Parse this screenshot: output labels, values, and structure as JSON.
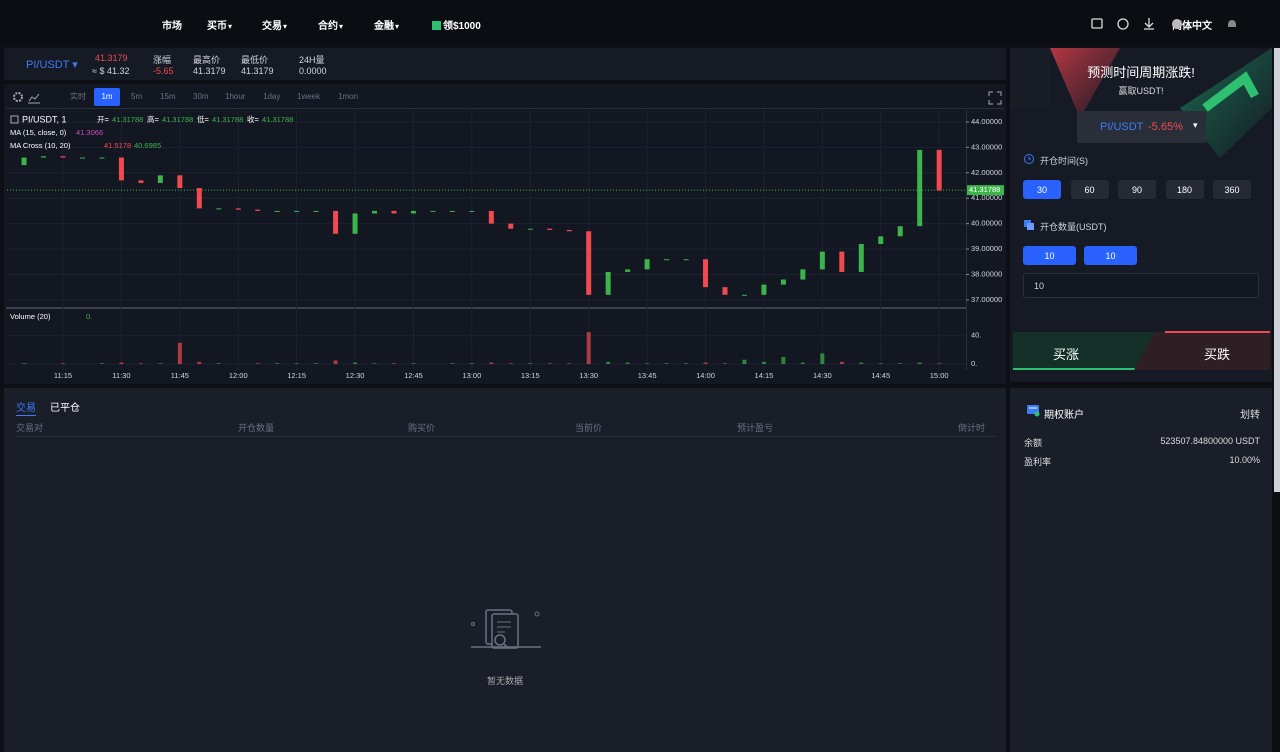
{
  "nav": {
    "items": [
      "市场",
      "买币",
      "交易",
      "合约",
      "金融"
    ],
    "dropdown": [
      false,
      true,
      true,
      true,
      true
    ],
    "promo": "领$1000",
    "language": "简体中文"
  },
  "ticker": {
    "pair": "PI/USDT",
    "price": "41.3179",
    "usd_price": "≈ $ 41.32",
    "stats": [
      {
        "label": "涨幅",
        "value": "-5.65",
        "negative": true
      },
      {
        "label": "最高价",
        "value": "41.3179",
        "negative": false
      },
      {
        "label": "最低价",
        "value": "41.3179",
        "negative": false
      },
      {
        "label": "24H量",
        "value": "0.0000",
        "negative": false
      }
    ]
  },
  "toolbar": {
    "intervals": [
      "实时",
      "1m",
      "5m",
      "15m",
      "30m",
      "1hour",
      "1day",
      "1week",
      "1mon"
    ],
    "active": 1
  },
  "chart_data": {
    "type": "candlestick",
    "title": "PI/USDT, 1",
    "ohlc": [
      {
        "label": "开=",
        "value": "41.31788"
      },
      {
        "label": "高=",
        "value": "41.31788"
      },
      {
        "label": "低=",
        "value": "41.31788"
      },
      {
        "label": "收=",
        "value": "41.31788"
      }
    ],
    "indicators": [
      {
        "name": "MA (15, close, 0)",
        "values": [
          "41.3066"
        ],
        "colors": [
          "#c64fc4"
        ]
      },
      {
        "name": "MA Cross (10, 20)",
        "values": [
          "41.5178",
          "40.6985"
        ],
        "colors": [
          "#f04a4f",
          "#3bb54a"
        ]
      }
    ],
    "up_color": "#3bb54a",
    "down_color": "#f04a4f",
    "categories": [
      null,
      null,
      null,
      "11:15",
      null,
      null,
      "11:30",
      null,
      null,
      "11:45",
      null,
      null,
      "12:00",
      null,
      null,
      "12:15",
      null,
      null,
      "12:30",
      null,
      null,
      "12:45",
      null,
      null,
      "13:00",
      null,
      null,
      "13:15",
      null,
      null,
      "13:30",
      null,
      null,
      "13:45",
      null,
      null,
      "14:00",
      null,
      null,
      "14:15",
      null,
      null,
      "14:30",
      null,
      null,
      "14:45",
      null,
      null,
      "15:00"
    ],
    "values": [
      42.3,
      42.6,
      42.65,
      42.6,
      42.6,
      42.6,
      41.7,
      41.6,
      41.9,
      41.4,
      40.6,
      40.6,
      40.55,
      40.5,
      40.5,
      40.5,
      40.5,
      39.6,
      40.4,
      40.5,
      40.4,
      40.5,
      40.5,
      40.5,
      40.5,
      40.0,
      39.8,
      39.8,
      39.75,
      39.7,
      37.2,
      38.1,
      38.2,
      38.6,
      38.6,
      38.6,
      37.5,
      37.2,
      37.2,
      37.6,
      37.8,
      38.2,
      38.9,
      38.1,
      39.2,
      39.5,
      39.9,
      42.9,
      41.3
    ],
    "ylim": [
      36.72,
      44.47
    ],
    "yticks": [
      {
        "value": 44,
        "label": "44.00000"
      },
      {
        "value": 43,
        "label": "43.00000"
      },
      {
        "value": 42,
        "label": "42.00000"
      },
      {
        "value": 41,
        "label": "41.00000"
      },
      {
        "value": 40,
        "label": "40.00000"
      },
      {
        "value": 39,
        "label": "39.00000"
      },
      {
        "value": 38,
        "label": "38.00000"
      },
      {
        "value": 37,
        "label": "37.00000"
      }
    ],
    "last": {
      "value": 41.31788,
      "label": "41.31788"
    },
    "grid": true,
    "volume": {
      "title": "Volume (20)",
      "last": "0.",
      "values": [
        1,
        1,
        0,
        1,
        0,
        1,
        2,
        1,
        1,
        30,
        3,
        1,
        0,
        1,
        1,
        1,
        1,
        5,
        2,
        1,
        1,
        1,
        0,
        1,
        1,
        2,
        1,
        1,
        1,
        1,
        45,
        3,
        2,
        1,
        1,
        1,
        2,
        1,
        6,
        3,
        10,
        2,
        15,
        3,
        2,
        1,
        1,
        2,
        1
      ],
      "ylim": [
        0,
        58
      ],
      "yticks": [
        {
          "value": 40,
          "label": "40."
        },
        {
          "value": 0,
          "label": "0."
        }
      ]
    }
  },
  "trade_panel": {
    "headline": "预测时间周期涨跌!",
    "subheadline": "赢取USDT!",
    "pair": "PI/USDT",
    "change": "-5.65%",
    "duration_label": "开仓时间(S)",
    "durations": [
      "30",
      "60",
      "90",
      "180",
      "360"
    ],
    "active_duration": 0,
    "amount_label": "开仓数量(USDT)",
    "amounts": [
      "10",
      "10"
    ],
    "amount_input": "10",
    "buy_up": "买涨",
    "buy_down": "买跌"
  },
  "account": {
    "title": "期权账户",
    "transfer": "划转",
    "rows": [
      {
        "label": "余额",
        "value": "523507.84800000 USDT"
      },
      {
        "label": "盈利率",
        "value": "10.00%"
      }
    ]
  },
  "orders": {
    "tabs": [
      "交易",
      "已平仓"
    ],
    "active_tab": 0,
    "columns": [
      "交易对",
      "开仓数量",
      "购买价",
      "当前价",
      "预计盈亏",
      "倒计时"
    ],
    "empty": "暂无数据"
  }
}
